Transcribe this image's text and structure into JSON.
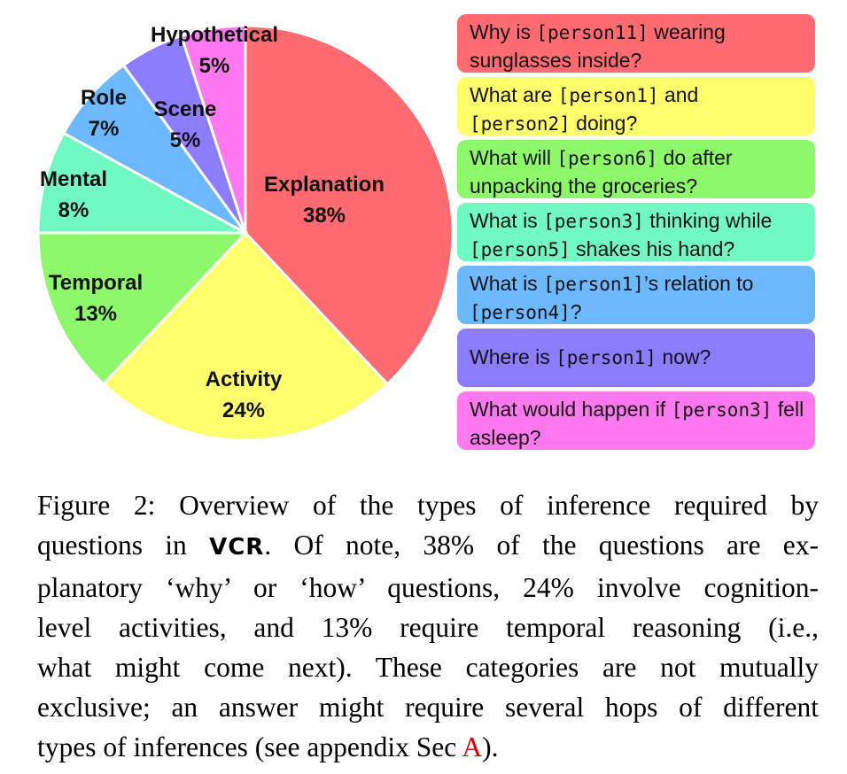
{
  "chart_data": {
    "type": "pie",
    "start_angle_deg": 0,
    "direction": "clockwise",
    "slices": [
      {
        "label": "Explanation",
        "value": 38,
        "value_label": "38%",
        "color": "#ff6b70"
      },
      {
        "label": "Activity",
        "value": 24,
        "value_label": "24%",
        "color": "#ffff6b"
      },
      {
        "label": "Temporal",
        "value": 13,
        "value_label": "13%",
        "color": "#8ef86b"
      },
      {
        "label": "Mental",
        "value": 8,
        "value_label": "8%",
        "color": "#70f9c2"
      },
      {
        "label": "Role",
        "value": 7,
        "value_label": "7%",
        "color": "#6db9ff"
      },
      {
        "label": "Scene",
        "value": 5,
        "value_label": "5%",
        "color": "#8c7cff"
      },
      {
        "label": "Hypothetical",
        "value": 5,
        "value_label": "5%",
        "color": "#ff78f0"
      }
    ]
  },
  "questions": [
    {
      "color": "#ff6b70",
      "parts": [
        "Why is ",
        "[person11]",
        " wearing sunglasses inside?"
      ]
    },
    {
      "color": "#ffff6b",
      "parts": [
        "What are ",
        "[person1]",
        " and ",
        "[person2]",
        " doing?"
      ]
    },
    {
      "color": "#8ef86b",
      "parts": [
        "What will ",
        "[person6]",
        " do after unpacking the groceries?"
      ]
    },
    {
      "color": "#70f9c2",
      "parts": [
        "What is ",
        "[person3]",
        " thinking while ",
        "[person5]",
        " shakes his hand?"
      ]
    },
    {
      "color": "#6db9ff",
      "parts": [
        "What is ",
        "[person1]",
        "’s relation to ",
        "[person4]",
        "?"
      ]
    },
    {
      "color": "#8c7cff",
      "parts": [
        "Where is ",
        "[person1]",
        " now?"
      ]
    },
    {
      "color": "#ff78f0",
      "parts": [
        "What would happen if ",
        "[person3]",
        " fell asleep?"
      ]
    }
  ],
  "caption": {
    "line1": "Figure 2:  Overview of the types of inference required by",
    "line2_a": "questions in ",
    "vcr": "VCR",
    "line2_b": ". Of note, 38% of the questions are ex-",
    "line3": "planatory ‘why’ or ‘how’ questions, 24% involve cognition-",
    "line4": "level activities, and 13% require temporal reasoning (i.e.,",
    "line5": "what might come next).  These categories are not mutually",
    "line6": "exclusive; an answer might require several hops of different",
    "line7_a": "types of inferences (see appendix Sec ",
    "ref": "A",
    "line7_b": ")."
  }
}
